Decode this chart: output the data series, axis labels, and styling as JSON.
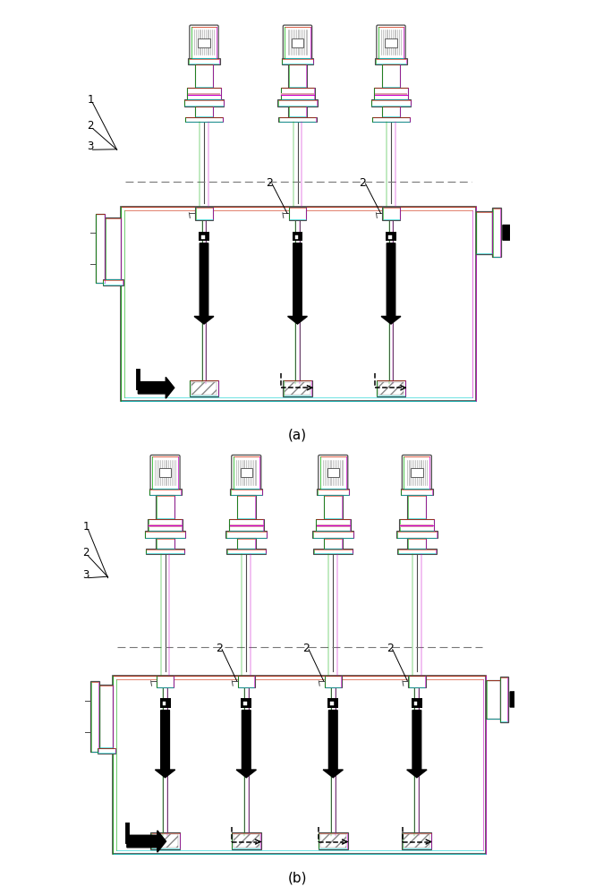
{
  "fig_width": 6.65,
  "fig_height": 10.0,
  "dpi": 100,
  "bg_color": "#ffffff",
  "lc": "#4a4a4a",
  "lc_thin": "#888888",
  "label_a": "(a)",
  "label_b": "(b)",
  "color_c": "#00cccc",
  "color_m": "#cc00cc",
  "color_g": "#00aa00",
  "color_r": "#cc2200"
}
